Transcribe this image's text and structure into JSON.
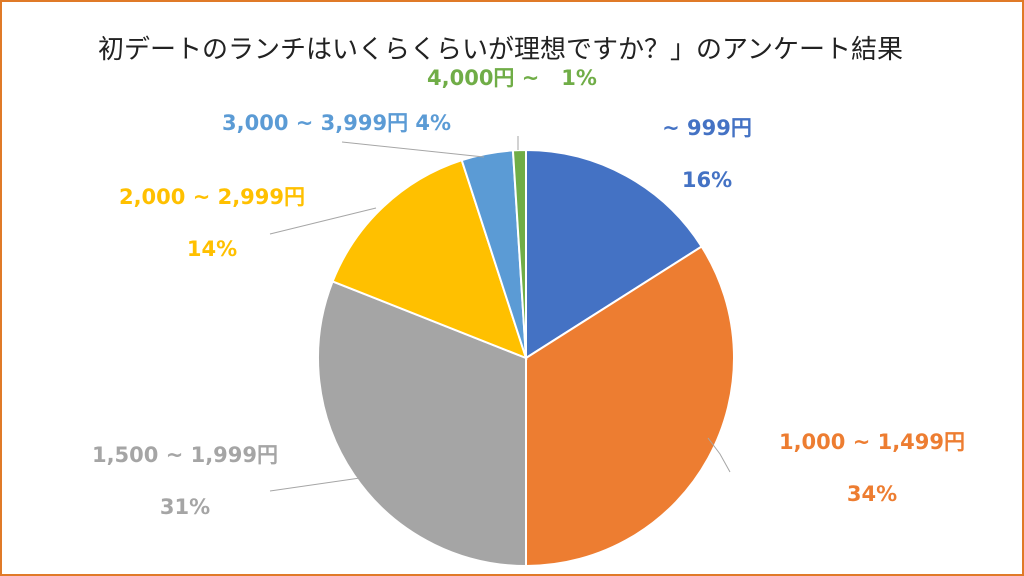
{
  "chart_data": {
    "type": "pie",
    "title": "初デートのランチはいくらくらいが理想ですか？」のアンケート結果",
    "categories": [
      "~ 999円",
      "1,000 ~ 1,499円",
      "1,500 ~ 1,999円",
      "2,000 ~ 2,999円",
      "3,000 ~ 3,999円",
      "4,000円 ~"
    ],
    "values": [
      16,
      34,
      31,
      14,
      4,
      1
    ],
    "value_labels": [
      "16%",
      "34%",
      "31%",
      "14%",
      "4%",
      "1%"
    ],
    "colors": [
      "#4472C4",
      "#ED7D31",
      "#A5A5A5",
      "#FFC000",
      "#5B9BD5",
      "#70AD47"
    ]
  }
}
